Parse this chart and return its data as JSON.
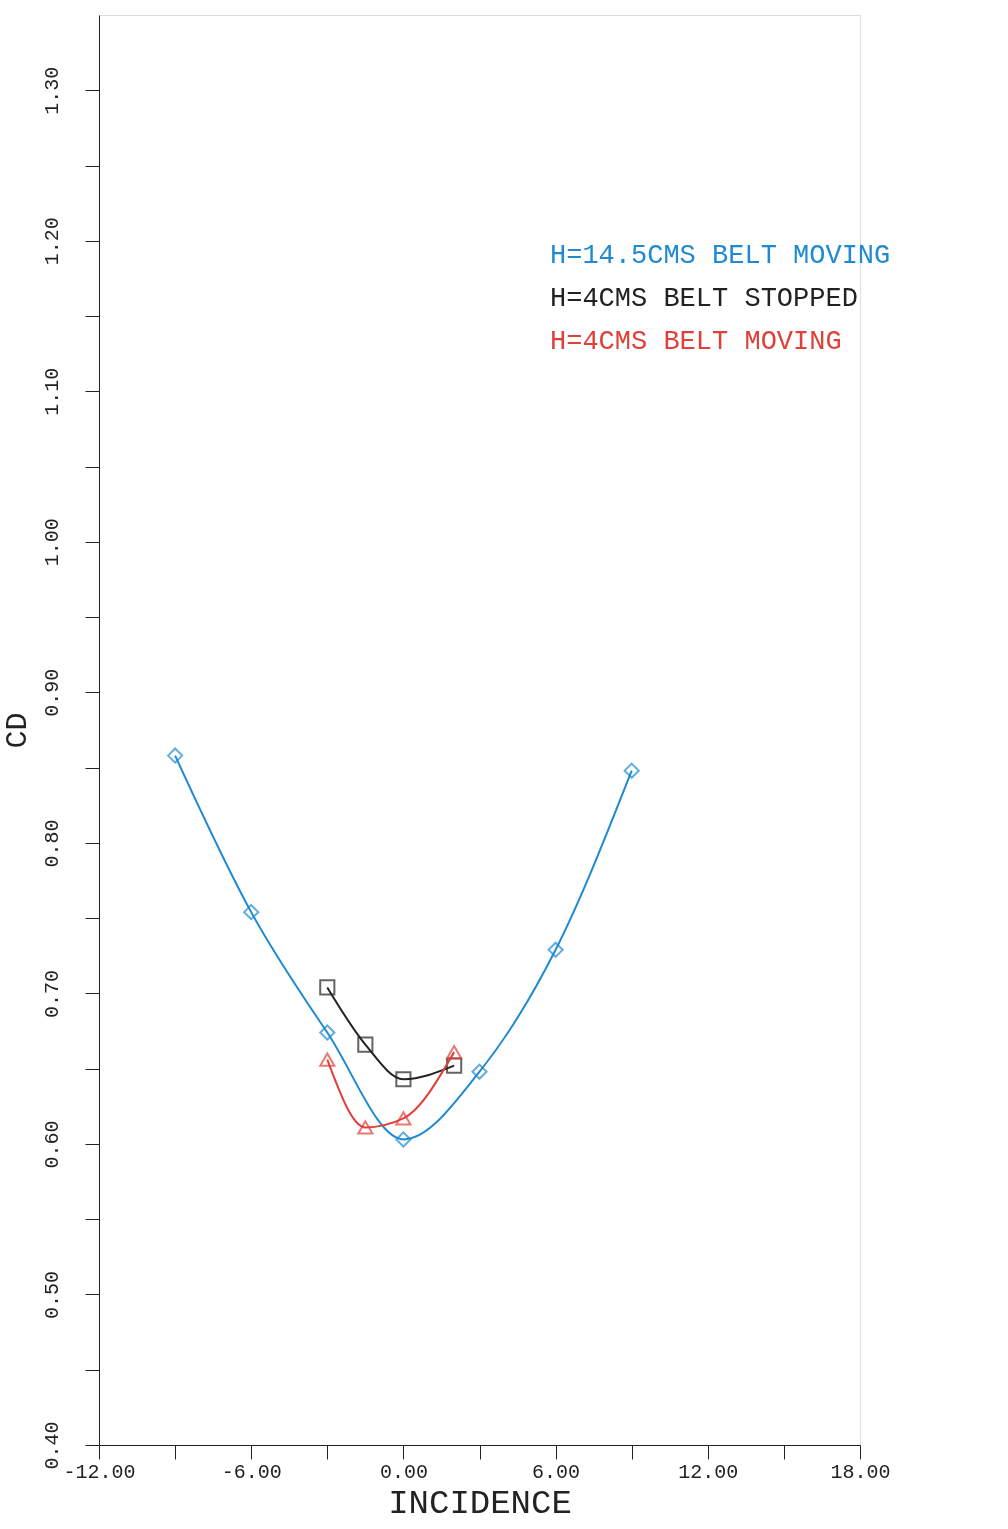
{
  "chart_data": {
    "type": "line",
    "xlabel": "INCIDENCE",
    "ylabel": "CD",
    "xlim": [
      -12,
      18
    ],
    "ylim": [
      0.4,
      1.35
    ],
    "xticks": [
      {
        "value": -12,
        "label": "-12.00"
      },
      {
        "value": -9,
        "label": null
      },
      {
        "value": -6,
        "label": "-6.00"
      },
      {
        "value": -3,
        "label": null
      },
      {
        "value": 0,
        "label": "0.00"
      },
      {
        "value": 3,
        "label": null
      },
      {
        "value": 6,
        "label": "6.00"
      },
      {
        "value": 9,
        "label": null
      },
      {
        "value": 12,
        "label": "12.00"
      },
      {
        "value": 15,
        "label": null
      },
      {
        "value": 18,
        "label": "18.00"
      }
    ],
    "yticks": [
      {
        "value": 0.4,
        "label": "0.40"
      },
      {
        "value": 0.45,
        "label": null
      },
      {
        "value": 0.5,
        "label": "0.50"
      },
      {
        "value": 0.55,
        "label": null
      },
      {
        "value": 0.6,
        "label": "0.60"
      },
      {
        "value": 0.65,
        "label": null
      },
      {
        "value": 0.7,
        "label": "0.70"
      },
      {
        "value": 0.75,
        "label": null
      },
      {
        "value": 0.8,
        "label": "0.80"
      },
      {
        "value": 0.85,
        "label": null
      },
      {
        "value": 0.9,
        "label": "0.90"
      },
      {
        "value": 0.95,
        "label": null
      },
      {
        "value": 1.0,
        "label": "1.00"
      },
      {
        "value": 1.05,
        "label": null
      },
      {
        "value": 1.1,
        "label": "1.10"
      },
      {
        "value": 1.15,
        "label": null
      },
      {
        "value": 1.2,
        "label": "1.20"
      },
      {
        "value": 1.25,
        "label": null
      },
      {
        "value": 1.3,
        "label": "1.30"
      }
    ],
    "grid": false,
    "legend": "top right",
    "line_style": "solid",
    "series": [
      {
        "name": "H=14.5CMS BELT MOVING",
        "color": "#1f8ad0",
        "marker": "diamond",
        "x": [
          -9,
          -6,
          -3,
          0,
          3,
          6,
          9
        ],
        "values": [
          0.858,
          0.754,
          0.674,
          0.603,
          0.648,
          0.729,
          0.848
        ]
      },
      {
        "name": "H=4CMS BELT STOPPED",
        "color": "#222222",
        "marker": "square",
        "x": [
          -3,
          -1.5,
          0,
          2
        ],
        "values": [
          0.704,
          0.666,
          0.643,
          0.652
        ]
      },
      {
        "name": "H=4CMS BELT MOVING",
        "color": "#e0403a",
        "marker": "triangle",
        "x": [
          -3,
          -1.5,
          0,
          2
        ],
        "values": [
          0.656,
          0.611,
          0.617,
          0.661
        ]
      }
    ]
  }
}
